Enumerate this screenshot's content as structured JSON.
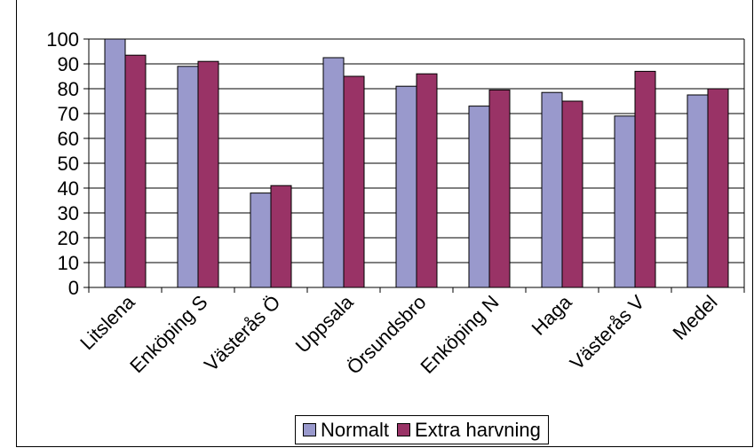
{
  "colors": {
    "normalt": "#9999cc",
    "extra": "#993366",
    "grid": "#000000",
    "background": "#ffffff"
  },
  "chart_data": {
    "type": "bar",
    "categories": [
      "Litslena",
      "Enköping S",
      "Västerås Ö",
      "Uppsala",
      "Örsundsbro",
      "Enköping N",
      "Haga",
      "Västerås V",
      "Medel"
    ],
    "series": [
      {
        "name": "Normalt",
        "values": [
          100,
          89,
          38,
          92.5,
          81,
          73,
          78.5,
          69,
          77.5
        ]
      },
      {
        "name": "Extra harvning",
        "values": [
          93.5,
          91,
          41,
          85,
          86,
          79.5,
          75,
          87,
          80
        ]
      }
    ],
    "yticks": [
      "0",
      "10",
      "20",
      "30",
      "40",
      "50",
      "60",
      "70",
      "80",
      "90",
      "100"
    ],
    "ylim": [
      0,
      100
    ],
    "title": "",
    "xlabel": "",
    "ylabel": "",
    "grid": true,
    "legend_position": "bottom"
  },
  "legend": {
    "items": [
      {
        "label": "Normalt"
      },
      {
        "label": "Extra harvning"
      }
    ]
  }
}
